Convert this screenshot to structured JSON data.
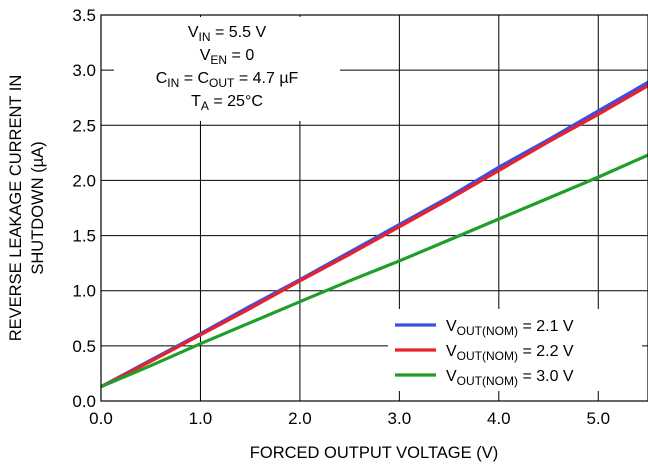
{
  "chart_data": {
    "type": "line",
    "title": "",
    "xlabel": "FORCED OUTPUT VOLTAGE (V)",
    "ylabel_line1": "REVERSE LEAKAGE CURRENT IN",
    "ylabel_line2": "SHUTDOWN (µA)",
    "xlim": [
      0,
      5.5
    ],
    "ylim": [
      0,
      3.5
    ],
    "x_ticks": [
      0,
      1,
      2,
      3,
      4,
      5
    ],
    "x_tick_labels": [
      "0.0",
      "1.0",
      "2.0",
      "3.0",
      "4.0",
      "5.0"
    ],
    "y_ticks": [
      0,
      0.5,
      1,
      1.5,
      2,
      2.5,
      3,
      3.5
    ],
    "y_tick_labels": [
      "0.0",
      "0.5",
      "1.0",
      "1.5",
      "2.0",
      "2.5",
      "3.0",
      "3.5"
    ],
    "grid": true,
    "legend_position": "bottom-right",
    "conditions": [
      {
        "main": "V",
        "sub": "IN",
        "rest": " = 5.5 V"
      },
      {
        "main": "V",
        "sub": "EN",
        "rest": " = 0"
      },
      {
        "main": "C",
        "sub": "IN",
        "mid": " = C",
        "sub2": "OUT",
        "rest": " = 4.7 µF"
      },
      {
        "main": "T",
        "sub": "A",
        "rest": " = 25°C"
      }
    ],
    "series": [
      {
        "label_main": "V",
        "label_sub": "OUT(NOM)",
        "label_rest": " = 2.1 V",
        "color": "#3b4fe0",
        "x": [
          0,
          0.5,
          1,
          1.5,
          2,
          2.5,
          3,
          3.5,
          4,
          4.5,
          5,
          5.5
        ],
        "y": [
          0.13,
          0.37,
          0.61,
          0.86,
          1.1,
          1.35,
          1.6,
          1.85,
          2.12,
          2.37,
          2.63,
          2.89
        ]
      },
      {
        "label_main": "V",
        "label_sub": "OUT(NOM)",
        "label_rest": " = 2.2 V",
        "color": "#e8222a",
        "x": [
          0,
          0.5,
          1,
          1.5,
          2,
          2.5,
          3,
          3.5,
          4,
          4.5,
          5,
          5.5
        ],
        "y": [
          0.13,
          0.36,
          0.6,
          0.84,
          1.09,
          1.33,
          1.58,
          1.83,
          2.09,
          2.35,
          2.6,
          2.86
        ]
      },
      {
        "label_main": "V",
        "label_sub": "OUT(NOM)",
        "label_rest": " = 3.0 V",
        "color": "#1f9e2a",
        "x": [
          0,
          0.5,
          1,
          1.5,
          2,
          2.5,
          3,
          3.5,
          4,
          4.5,
          5,
          5.5
        ],
        "y": [
          0.13,
          0.32,
          0.52,
          0.71,
          0.9,
          1.09,
          1.27,
          1.46,
          1.65,
          1.84,
          2.03,
          2.23
        ]
      }
    ]
  }
}
